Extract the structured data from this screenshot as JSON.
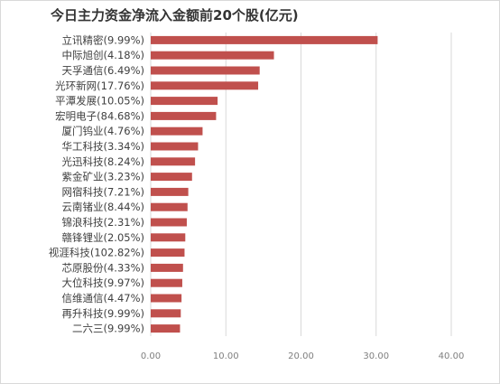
{
  "chart_data": {
    "type": "bar",
    "orientation": "horizontal",
    "title": "今日主力资金净流入金额前20个股(亿元)",
    "categories": [
      "立讯精密(9.99%)",
      "中际旭创(4.18%)",
      "天孚通信(6.49%)",
      "光环新网(17.76%)",
      "平潭发展(10.05%)",
      "宏明电子(84.68%)",
      "厦门钨业(4.76%)",
      "华工科技(3.34%)",
      "光迅科技(8.24%)",
      "紫金矿业(3.23%)",
      "网宿科技(7.21%)",
      "云南锗业(8.44%)",
      "锦浪科技(2.31%)",
      "赣锋锂业(2.05%)",
      "视涯科技(102.82%)",
      "芯原股份(4.33%)",
      "大位科技(9.97%)",
      "信维通信(4.47%)",
      "再升科技(9.99%)",
      "二六三(9.99%)"
    ],
    "values": [
      30.2,
      16.4,
      14.5,
      14.3,
      8.9,
      8.7,
      6.9,
      6.3,
      5.9,
      5.5,
      5.0,
      4.9,
      4.8,
      4.6,
      4.5,
      4.3,
      4.2,
      4.1,
      4.0,
      3.9
    ],
    "xlim": [
      0,
      40
    ],
    "xticks": [
      0,
      10,
      20,
      30,
      40
    ],
    "xtick_labels": [
      "0.00",
      "10.00",
      "20.00",
      "30.00",
      "40.00"
    ],
    "grid": true,
    "bar_color": "#c0504d",
    "grid_color": "#d9d9d9"
  }
}
